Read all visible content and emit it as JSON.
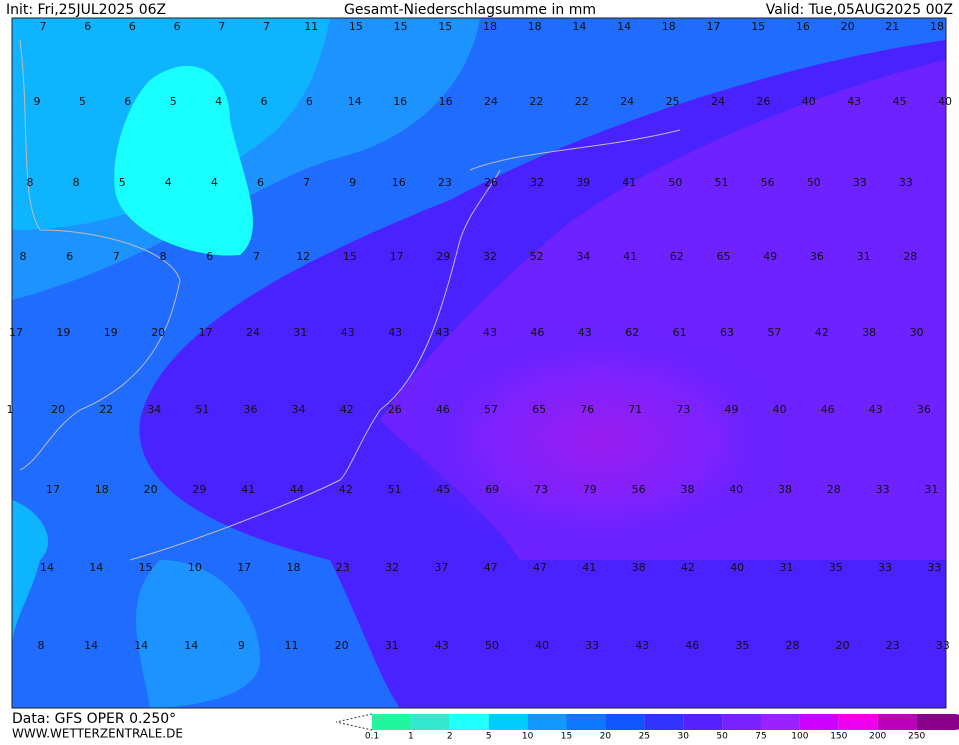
{
  "header": {
    "init": "Init: Fri,25JUL2025 06Z",
    "title": "Gesamt-Niederschlagsumme in mm",
    "valid": "Valid: Tue,05AUG2025 00Z"
  },
  "footer": {
    "data": "Data: GFS OPER 0.250°",
    "site": "WWW.WETTERZENTRALE.DE"
  },
  "legend": {
    "labels": [
      0.1,
      1,
      2,
      5,
      10,
      15,
      20,
      25,
      30,
      50,
      75,
      100,
      150,
      200,
      250
    ],
    "colors": [
      "#22f5a0",
      "#33e8cc",
      "#22ffff",
      "#00ccff",
      "#1199ff",
      "#0f77ff",
      "#1155ff",
      "#3333ff",
      "#5522ff",
      "#7722ff",
      "#9922ff",
      "#cc00ff",
      "#ee00ee",
      "#bb00bb",
      "#880088"
    ]
  },
  "grid_values": [
    [
      7,
      6,
      6,
      6,
      7,
      7,
      11,
      15,
      15,
      15,
      18,
      18,
      14,
      14,
      18,
      17,
      15,
      16,
      20,
      21,
      18
    ],
    [
      9,
      5,
      6,
      5,
      4,
      6,
      6,
      14,
      16,
      16,
      24,
      22,
      22,
      24,
      25,
      24,
      26,
      40,
      43,
      45,
      40
    ],
    [
      8,
      8,
      5,
      4,
      4,
      6,
      7,
      9,
      16,
      23,
      26,
      32,
      39,
      41,
      50,
      51,
      56,
      50,
      33,
      33
    ],
    [
      8,
      6,
      7,
      8,
      6,
      7,
      12,
      15,
      17,
      29,
      32,
      52,
      34,
      41,
      62,
      65,
      49,
      36,
      31,
      28
    ],
    [
      17,
      19,
      19,
      20,
      17,
      24,
      31,
      43,
      43,
      43,
      43,
      46,
      43,
      62,
      61,
      63,
      57,
      42,
      38,
      30
    ],
    [
      1,
      20,
      22,
      34,
      51,
      36,
      34,
      42,
      26,
      46,
      57,
      65,
      76,
      71,
      73,
      49,
      40,
      46,
      43,
      36
    ],
    [
      17,
      18,
      20,
      29,
      41,
      44,
      42,
      51,
      45,
      69,
      73,
      79,
      56,
      38,
      40,
      38,
      28,
      33,
      31
    ],
    [
      14,
      14,
      15,
      10,
      17,
      18,
      23,
      32,
      37,
      47,
      47,
      41,
      38,
      42,
      40,
      31,
      35,
      33,
      33
    ],
    [
      8,
      14,
      14,
      14,
      9,
      11,
      20,
      31,
      43,
      50,
      40,
      33,
      43,
      46,
      35,
      28,
      20,
      23,
      33
    ]
  ]
}
